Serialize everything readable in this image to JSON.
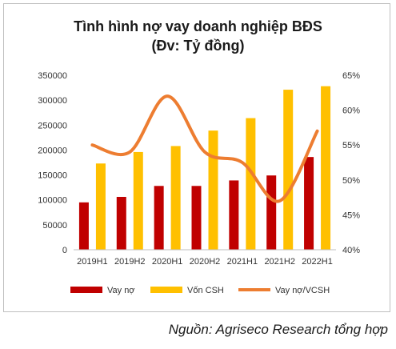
{
  "chart_data": {
    "type": "bar",
    "title": "Tình hình nợ vay doanh nghiệp BĐS",
    "subtitle": "(Đv: Tỷ đồng)",
    "categories": [
      "2019H1",
      "2019H2",
      "2020H1",
      "2020H2",
      "2021H1",
      "2021H2",
      "2022H1"
    ],
    "series": [
      {
        "name": "Vay nợ",
        "type": "bar",
        "axis": "left",
        "color": "#c00000",
        "values": [
          95000,
          106000,
          128000,
          128000,
          139000,
          149000,
          186000
        ]
      },
      {
        "name": "Vốn CSH",
        "type": "bar",
        "axis": "left",
        "color": "#ffc000",
        "values": [
          173000,
          196000,
          208000,
          239000,
          264000,
          321000,
          328000
        ]
      },
      {
        "name": "Vay nợ/VCSH",
        "type": "line",
        "axis": "right",
        "color": "#ed7d31",
        "values": [
          55.0,
          54.0,
          62.0,
          54.0,
          52.5,
          47.0,
          57.0
        ]
      }
    ],
    "y_left": {
      "min": 0,
      "max": 350000,
      "step": 50000,
      "ticks": [
        "0",
        "50000",
        "100000",
        "150000",
        "200000",
        "250000",
        "300000",
        "350000"
      ]
    },
    "y_right": {
      "min": 40,
      "max": 65,
      "step": 5,
      "ticks": [
        "40%",
        "45%",
        "50%",
        "55%",
        "60%",
        "65%"
      ]
    },
    "grid": false,
    "legend": "bottom"
  },
  "source": "Nguồn: Agriseco Research tổng hợp"
}
